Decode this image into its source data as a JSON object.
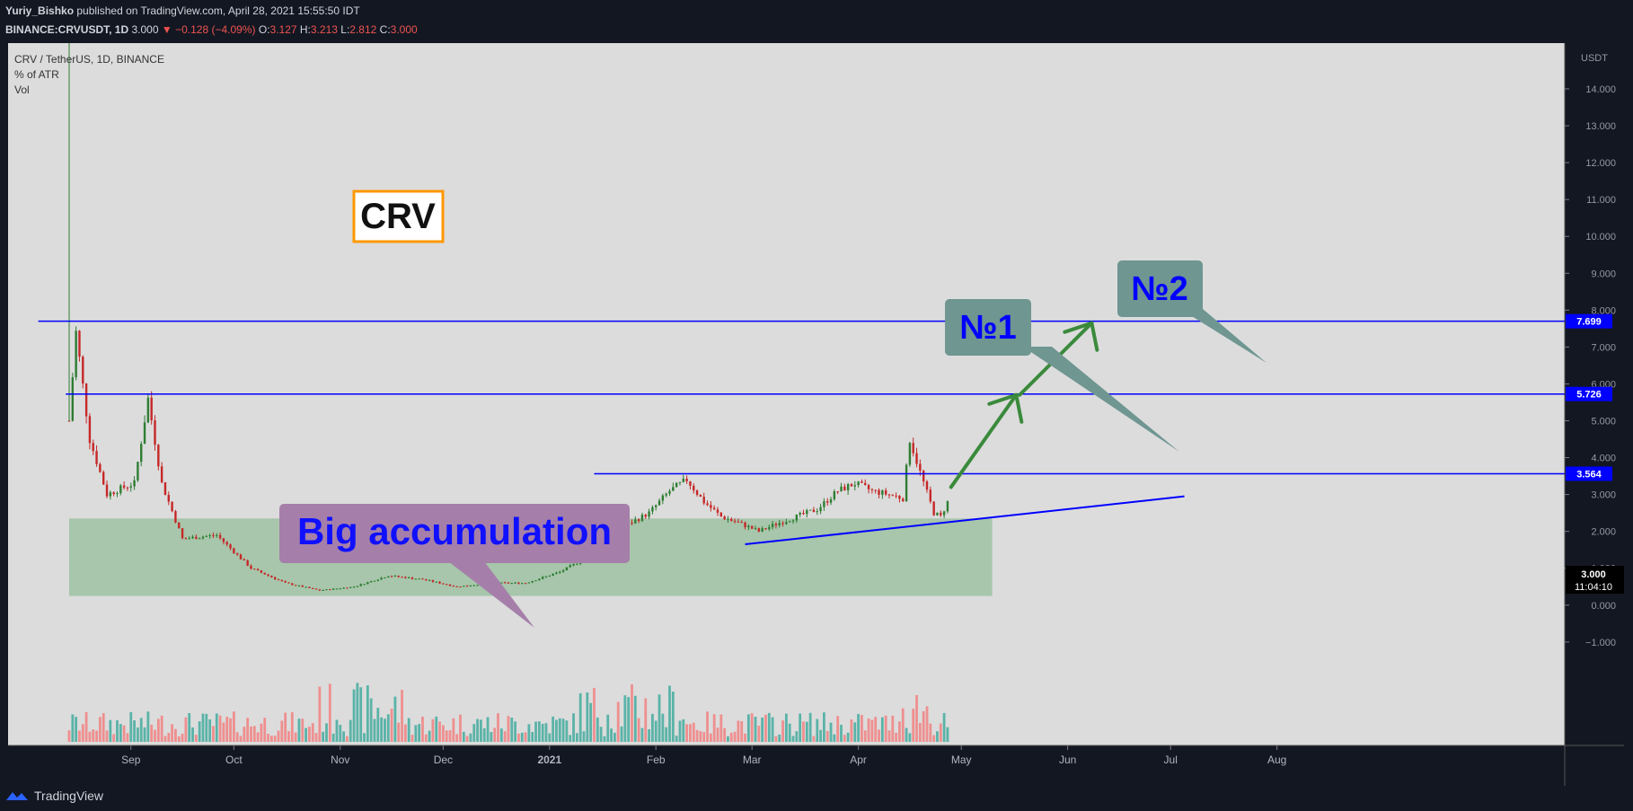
{
  "header": {
    "author": "Yuriy_Bishko",
    "publish_text": "published on TradingView.com, April 28, 2021 15:55:50 IDT",
    "symbol": "BINANCE:CRVUSDT, 1D",
    "last": "3.000",
    "change": "−0.128 (−4.09%)",
    "open_label": "O:",
    "open": "3.127",
    "high_label": "H:",
    "high": "3.213",
    "low_label": "L:",
    "low": "2.812",
    "close_label": "C:",
    "close": "3.000"
  },
  "legend": {
    "pair": "CRV / TetherUS, 1D, BINANCE",
    "indicator1": "% of ATR",
    "indicator2": "Vol"
  },
  "annotations": {
    "title_box": "CRV",
    "accumulation": "Big accumulation",
    "target1": "№1",
    "target2": "№2"
  },
  "axis": {
    "currency": "USDT",
    "y_ticks": [
      "14.000",
      "13.000",
      "12.000",
      "11.000",
      "10.000",
      "9.000",
      "8.000",
      "7.000",
      "6.000",
      "5.000",
      "4.000",
      "3.000",
      "2.000",
      "1.000",
      "0.000",
      "−1.000"
    ],
    "x_ticks": [
      "Sep",
      "Oct",
      "Nov",
      "Dec",
      "2021",
      "Feb",
      "Mar",
      "Apr",
      "May",
      "Jun",
      "Jul",
      "Aug"
    ],
    "price_tags": [
      "7.699",
      "5.726",
      "3.564"
    ],
    "current_price": "3.000",
    "countdown": "11:04:10"
  },
  "footer": {
    "brand": "TradingView"
  },
  "colors": {
    "background": "#131722",
    "pane": "#dcdcdc",
    "level_line": "#0000ff",
    "accumulation_zone": "#83b78a",
    "accumulation_label_bg": "#a57fa9",
    "target_box_bg": "#6f9691",
    "target_text": "#0000ff",
    "arrow": "#3a8a3c",
    "title_box_border": "#ff9800",
    "candle_up": "#2e7d32",
    "candle_down": "#c62828",
    "volume_up": "#5ab3a8",
    "volume_down": "#ef8f8f"
  },
  "chart_data": {
    "type": "line",
    "title": "CRV / TetherUS, 1D, BINANCE",
    "xlabel": "",
    "ylabel": "USDT",
    "ylim": [
      -1,
      14.6
    ],
    "x": [
      "2020-08-14",
      "2020-08-16",
      "2020-08-20",
      "2020-08-25",
      "2020-08-30",
      "2020-09-02",
      "2020-09-06",
      "2020-09-10",
      "2020-09-16",
      "2020-09-26",
      "2020-10-06",
      "2020-10-16",
      "2020-10-26",
      "2020-11-05",
      "2020-11-15",
      "2020-11-25",
      "2020-12-05",
      "2020-12-15",
      "2020-12-25",
      "2021-01-04",
      "2021-01-10",
      "2021-01-14",
      "2021-01-18",
      "2021-01-24",
      "2021-01-30",
      "2021-02-05",
      "2021-02-10",
      "2021-02-15",
      "2021-02-20",
      "2021-02-26",
      "2021-03-03",
      "2021-03-08",
      "2021-03-14",
      "2021-03-20",
      "2021-03-26",
      "2021-03-31",
      "2021-04-05",
      "2021-04-10",
      "2021-04-14",
      "2021-04-16",
      "2021-04-19",
      "2021-04-23",
      "2021-04-25",
      "2021-04-28"
    ],
    "series": [
      {
        "values": [
          5.0,
          7.4,
          4.5,
          3.0,
          3.2,
          3.3,
          5.6,
          3.3,
          1.8,
          1.9,
          1.0,
          0.6,
          0.4,
          0.5,
          0.8,
          0.7,
          0.5,
          0.6,
          0.6,
          0.9,
          1.2,
          1.3,
          2.0,
          2.2,
          2.5,
          3.1,
          3.4,
          2.8,
          2.4,
          2.2,
          2.0,
          2.2,
          2.4,
          2.6,
          3.1,
          3.3,
          3.1,
          3.0,
          2.9,
          4.5,
          3.6,
          2.5,
          2.4,
          3.0
        ]
      }
    ],
    "levels": [
      7.699,
      5.726,
      3.564
    ],
    "support_trendline": {
      "from": [
        "2021-02-27",
        1.65
      ],
      "to": [
        "2021-07-05",
        2.95
      ]
    },
    "accumulation_zone": {
      "from": "2020-08-14",
      "to": "2021-05-10",
      "low": 0.25,
      "high": 2.35
    },
    "projection_arrows": [
      {
        "from": [
          "2021-04-28",
          3.2
        ],
        "to": [
          "2021-05-17",
          5.7
        ]
      },
      {
        "from": [
          "2021-05-18",
          5.7
        ],
        "to": [
          "2021-06-08",
          7.65
        ]
      }
    ],
    "volume_axis_note": "volume histogram at bottom of pane"
  }
}
